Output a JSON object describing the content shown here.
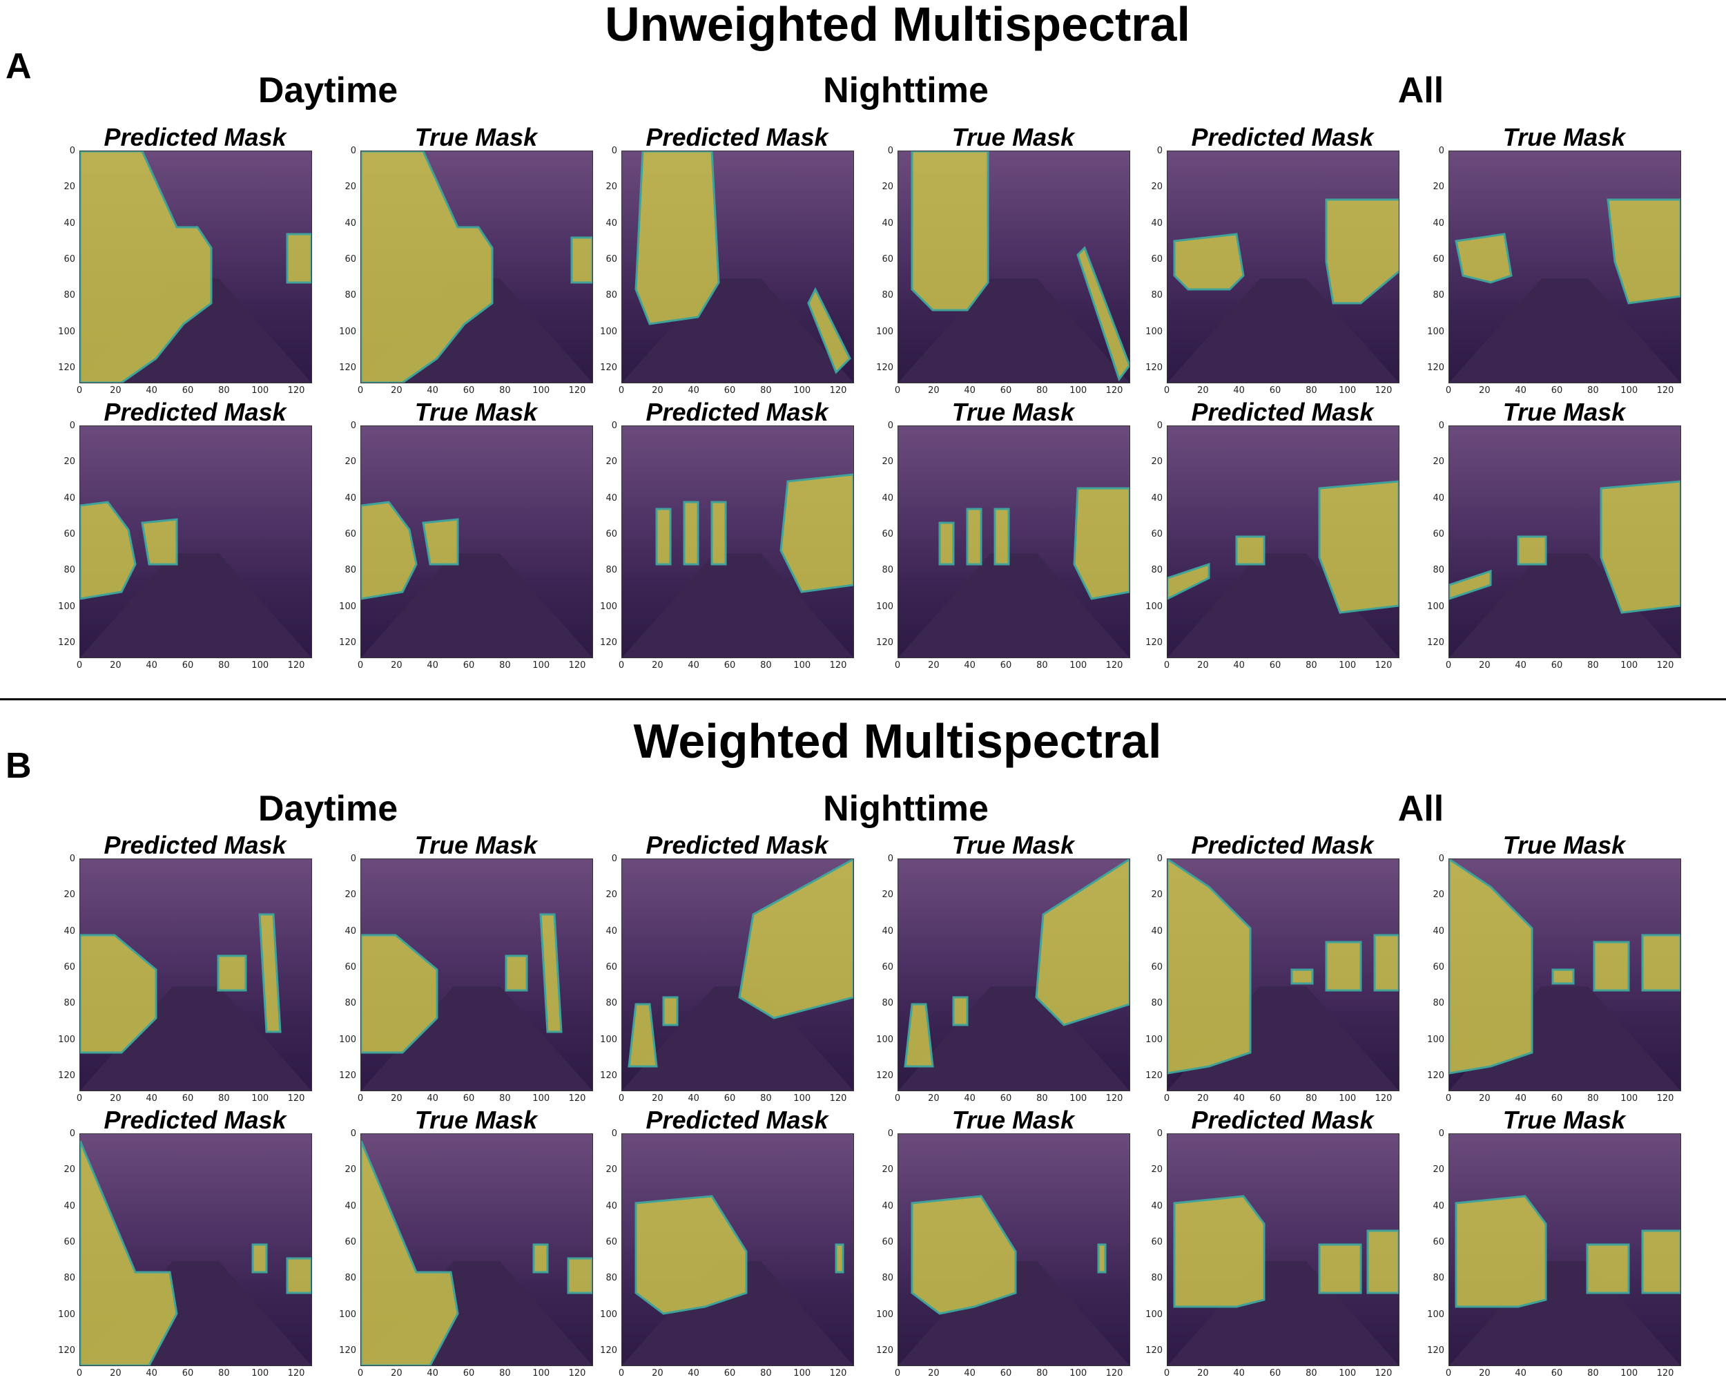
{
  "sections": [
    {
      "letter": "A",
      "title": "Unweighted Multispectral",
      "groups": [
        "Daytime",
        "Nighttime",
        "All"
      ],
      "rows": [
        [
          "Predicted Mask",
          "True Mask",
          "Predicted Mask",
          "True Mask",
          "Predicted Mask",
          "True Mask"
        ],
        [
          "Predicted Mask",
          "True Mask",
          "Predicted Mask",
          "True Mask",
          "Predicted Mask",
          "True Mask"
        ]
      ]
    },
    {
      "letter": "B",
      "title": "Weighted Multispectral",
      "groups": [
        "Daytime",
        "Nighttime",
        "All"
      ],
      "rows": [
        [
          "Predicted Mask",
          "True Mask",
          "Predicted Mask",
          "True Mask",
          "Predicted Mask",
          "True Mask"
        ],
        [
          "Predicted Mask",
          "True Mask",
          "Predicted Mask",
          "True Mask",
          "Predicted Mask",
          "True Mask"
        ]
      ]
    }
  ],
  "axis": {
    "y_ticks": [
      "0",
      "20",
      "40",
      "60",
      "80",
      "100",
      "120"
    ],
    "x_ticks": [
      "0",
      "20",
      "40",
      "60",
      "80",
      "100",
      "120"
    ]
  },
  "colors": {
    "mask": "#c9c24a",
    "mask_edge": "#3fa39a",
    "background_dark": "#2e1a45",
    "background_light": "#6b4b7c"
  }
}
